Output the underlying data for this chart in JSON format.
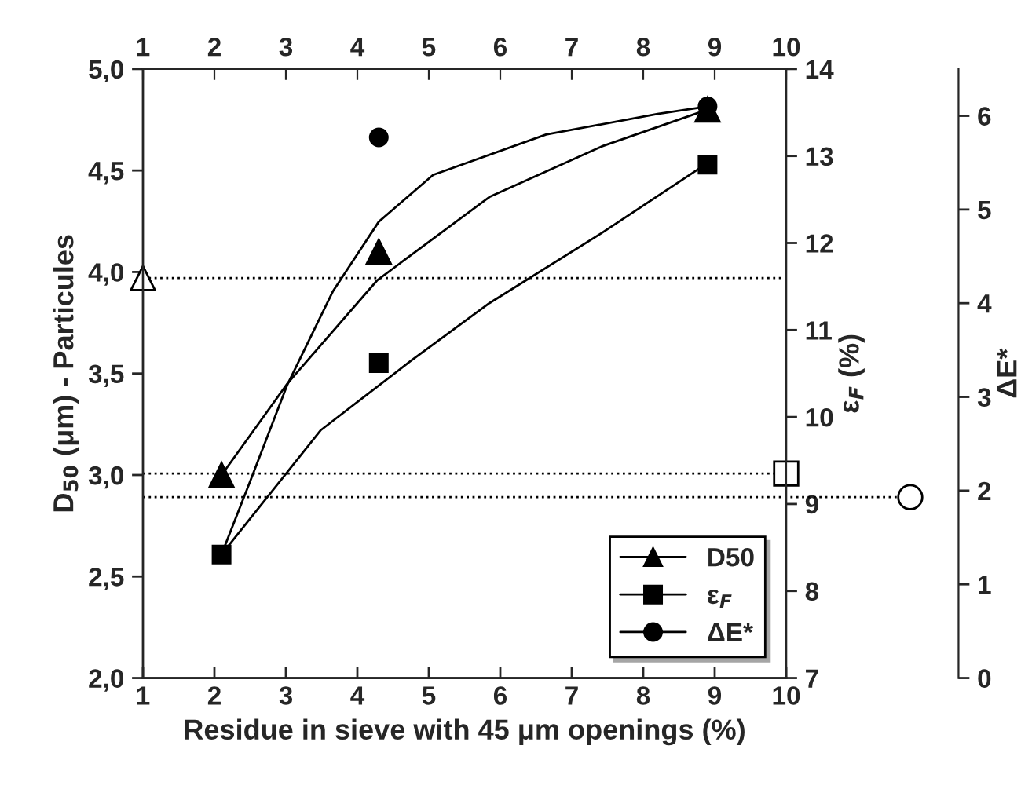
{
  "chart_data": {
    "type": "scatter",
    "xlabel": "Residue in sieve with 45 μm openings (%)",
    "ylabel": "D$_{50}$ (μm) - Particules",
    "y2label": "ε$_{F}$ (%)",
    "y3label": "ΔE*",
    "xlim": [
      1,
      10
    ],
    "xticks": [
      1,
      2,
      3,
      4,
      5,
      6,
      7,
      8,
      9,
      10
    ],
    "x2lim": [
      1,
      10
    ],
    "x2ticks": [
      1,
      2,
      3,
      4,
      5,
      6,
      7,
      8,
      9,
      10
    ],
    "ylim": [
      2.0,
      5.0
    ],
    "yticks": [
      {
        "value": 2.0,
        "label": "2,0"
      },
      {
        "value": 2.5,
        "label": "2,5"
      },
      {
        "value": 3.0,
        "label": "3,0"
      },
      {
        "value": 3.5,
        "label": "3,5"
      },
      {
        "value": 4.0,
        "label": "4,0"
      },
      {
        "value": 4.5,
        "label": "4,5"
      },
      {
        "value": 5.0,
        "label": "5,0"
      }
    ],
    "y2lim": [
      7,
      14
    ],
    "y2ticks": [
      7,
      8,
      9,
      10,
      11,
      12,
      13,
      14
    ],
    "y3lim": [
      0,
      6.5
    ],
    "y3ticks": [
      0,
      1,
      2,
      3,
      4,
      5,
      6
    ],
    "legend": "bottom right",
    "grid": false,
    "series": [
      {
        "name": "D50",
        "marker": "triangle",
        "axis": "y",
        "color": "#000000",
        "x": [
          2.1,
          4.3,
          8.9
        ],
        "values": [
          3.0,
          4.1,
          4.8
        ]
      },
      {
        "name": "ε$_{F}$",
        "marker": "square",
        "axis": "y2",
        "color": "#000000",
        "x": [
          2.1,
          4.3,
          8.9
        ],
        "values": [
          8.42,
          10.62,
          12.9
        ]
      },
      {
        "name": "ΔE*",
        "marker": "circle",
        "axis": "y3",
        "color": "#000000",
        "x": [
          4.3,
          8.9
        ],
        "values": [
          5.77,
          6.1
        ]
      },
      {
        "marker": "triangle",
        "axis": "y",
        "color": "#ffffff",
        "x": [
          1
        ],
        "values": [
          3.97
        ]
      },
      {
        "marker": "square",
        "axis": "y2",
        "color": "#ffffff",
        "x": [
          10
        ],
        "values": [
          9.35
        ]
      },
      {
        "type": "line",
        "axis": "y",
        "color": "#000000",
        "x": [
          2.1,
          3.02,
          4.28,
          5.85,
          7.43,
          8.9
        ],
        "values": [
          3.0,
          3.45,
          3.96,
          4.37,
          4.62,
          4.8
        ]
      },
      {
        "type": "line",
        "axis": "y2",
        "color": "#000000",
        "x": [
          2.1,
          3.49,
          4.74,
          5.85,
          7.43,
          8.9
        ],
        "values": [
          8.42,
          9.85,
          10.64,
          11.31,
          12.12,
          12.92
        ]
      },
      {
        "type": "line",
        "axis": "y3",
        "color": "#000000",
        "x": [
          2.1,
          2.5,
          3.02,
          3.66,
          4.3,
          5.06,
          6.64,
          8.2,
          8.9
        ],
        "values": [
          1.32,
          2.1,
          3.13,
          4.13,
          4.87,
          5.37,
          5.8,
          6.02,
          6.1
        ]
      }
    ],
    "ref_lines": [
      {
        "axis": "y",
        "value": 3.97,
        "color": "#000000",
        "line_style": "dotted"
      },
      {
        "axis": "y2",
        "value": 9.35,
        "color": "#000000",
        "line_style": "dotted"
      },
      {
        "axis": "y3",
        "value": 1.93,
        "color": "#000000",
        "line_style": "dotted"
      }
    ]
  }
}
